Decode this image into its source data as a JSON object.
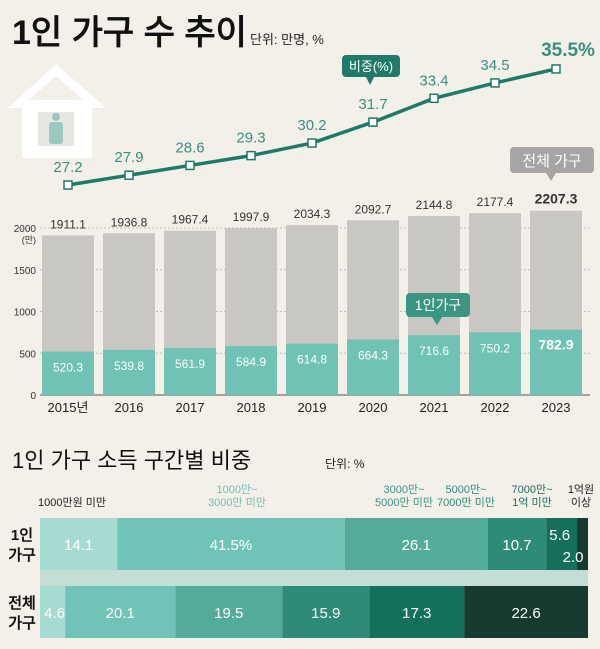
{
  "title": "1인 가구 수 추이",
  "unit": "단위: 만명, %",
  "title2": "1인 가구 소득 구간별 비중",
  "unit2": "단위: %",
  "colors": {
    "line": "#1f7a68",
    "label": "#3a8f7e",
    "total_bar": "#c9c7c4",
    "single_bar": "#6fc2b4",
    "callout_gray": "#a6a5a3"
  },
  "chart_data": [
    {
      "type": "bar+line",
      "categories": [
        "2015년",
        "2016",
        "2017",
        "2018",
        "2019",
        "2020",
        "2021",
        "2022",
        "2023"
      ],
      "series": [
        {
          "name": "전체 가구",
          "values": [
            1911.1,
            1936.8,
            1967.4,
            1997.9,
            2034.3,
            2092.7,
            2144.8,
            2177.4,
            2207.3
          ]
        },
        {
          "name": "1인가구",
          "values": [
            520.3,
            539.8,
            561.9,
            584.9,
            614.8,
            664.3,
            716.6,
            750.2,
            782.9
          ]
        },
        {
          "name": "비중(%)",
          "values": [
            27.2,
            27.9,
            28.6,
            29.3,
            30.2,
            31.7,
            33.4,
            34.5,
            35.5
          ]
        }
      ],
      "yticks": [
        "0",
        "500",
        "1000",
        "1500",
        "2000"
      ],
      "ytick_unit": "(만)",
      "ylim": [
        0,
        2000
      ],
      "last_share_label": "35.5%",
      "icon": "house-person-icon"
    },
    {
      "type": "stacked-bar",
      "categories": [
        "1000만원 미만",
        "1000만~ 3000만 미만",
        "3000만~ 5000만 미만",
        "5000만~ 7000만 미만",
        "7000만~ 1억 미만",
        "1억원 이상"
      ],
      "rows": [
        {
          "name": "1인 가구",
          "values": [
            14.1,
            41.5,
            26.1,
            10.7,
            5.6,
            2.0
          ],
          "labels": [
            "14.1",
            "41.5%",
            "26.1",
            "10.7",
            "5.6",
            "2.0"
          ]
        },
        {
          "name": "전체 가구",
          "values": [
            4.6,
            20.1,
            19.5,
            15.9,
            17.3,
            22.6
          ],
          "labels": [
            "4.6",
            "20.1",
            "19.5",
            "15.9",
            "17.3",
            "22.6"
          ]
        }
      ],
      "colors": [
        "#a6dbd2",
        "#70c4b7",
        "#53ab9a",
        "#2e8b78",
        "#14705b",
        "#173b31"
      ]
    }
  ]
}
